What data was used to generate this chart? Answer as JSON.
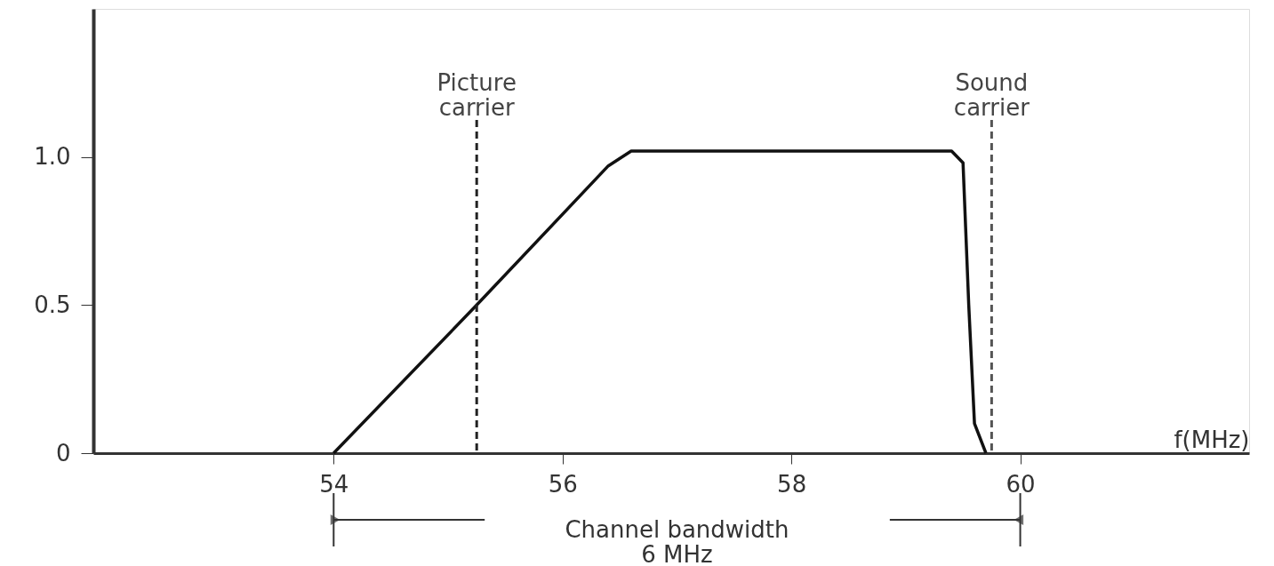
{
  "chart_data": {
    "type": "line",
    "x": [
      54,
      55.25,
      56.4,
      56.6,
      59.4,
      59.5,
      59.55,
      59.6,
      59.7
    ],
    "series": [
      {
        "color": "#111111",
        "values": [
          0,
          0.5,
          0.97,
          1.02,
          1.02,
          0.98,
          0.5,
          0.1,
          0
        ]
      }
    ],
    "xlabel": "f(MHz)",
    "xlim": [
      51.9,
      62
    ],
    "xticks": [
      54,
      56,
      58,
      60
    ],
    "ylim": [
      0,
      1.5
    ],
    "yticks": [
      0,
      0.5,
      {
        "value": 1,
        "label": "1.0"
      }
    ],
    "ref_lines": [
      {
        "axis": "x",
        "value": 55.25,
        "label": "Picture carrier",
        "line_style": "dashed",
        "color": "#222222"
      },
      {
        "axis": "x",
        "value": 59.75,
        "label": "Sound carrier",
        "line_style": "dashed",
        "color": "#555555"
      }
    ],
    "annotations": [
      "Channel bandwidth\n6 MHz"
    ],
    "grid": false,
    "line_style": "solid",
    "marker": "none"
  }
}
